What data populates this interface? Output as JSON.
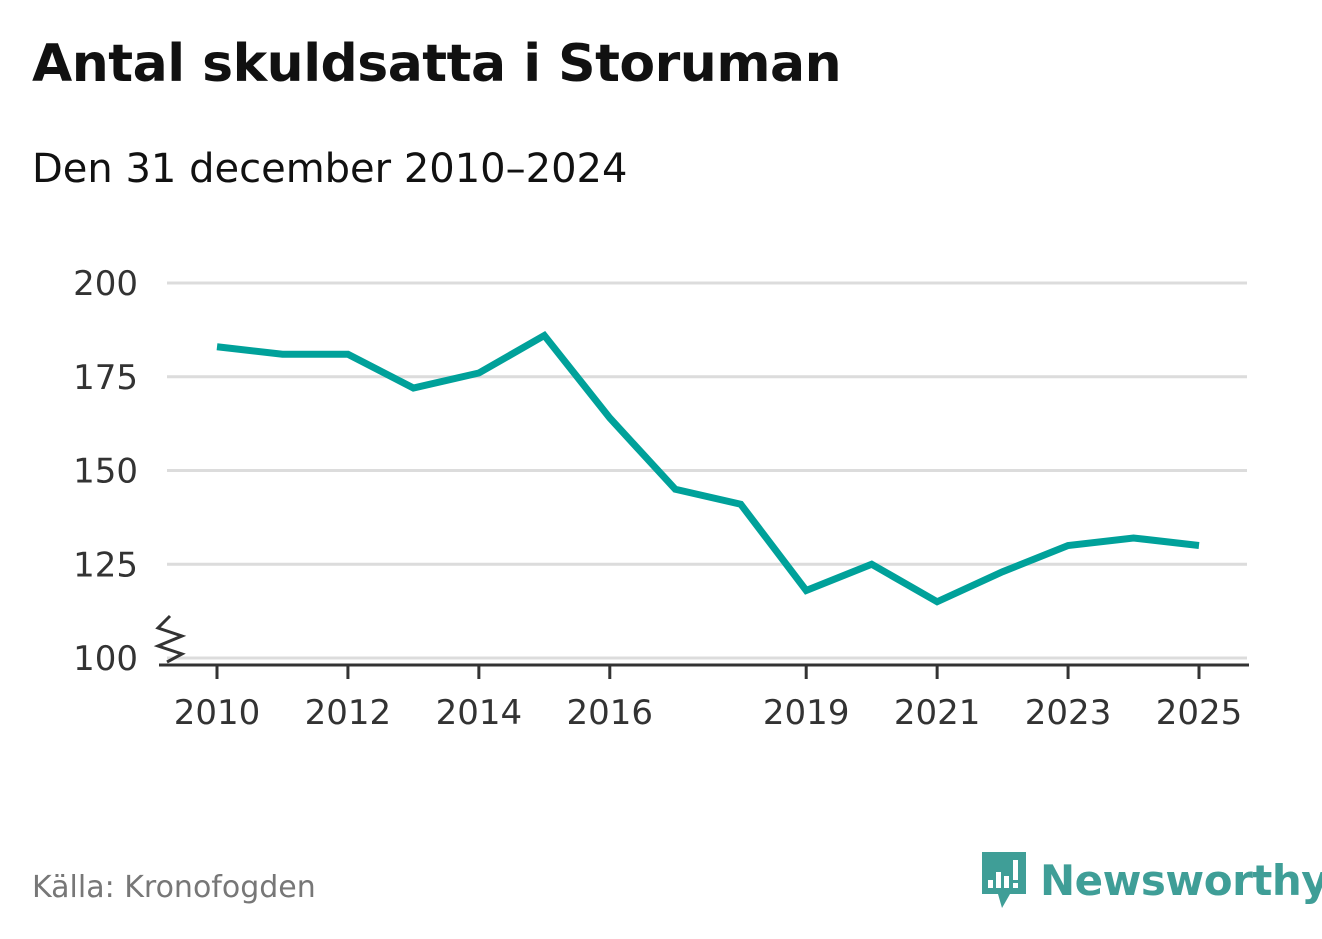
{
  "chart_data": {
    "type": "line",
    "title": "Antal skuldsatta i Storuman",
    "subtitle": "Den 31 december 2010–2024",
    "xlabel": "",
    "ylabel": "",
    "ylim": [
      100,
      200
    ],
    "xlim": [
      2010,
      2025
    ],
    "yticks": [
      100,
      125,
      150,
      175,
      200
    ],
    "yticks_labels": [
      "100",
      "125",
      "150",
      "175",
      "200"
    ],
    "xticks": [
      2010,
      2012,
      2014,
      2016,
      2019,
      2021,
      2023,
      2025
    ],
    "xticks_labels": [
      "2010",
      "2012",
      "2014",
      "2016",
      "2019",
      "2021",
      "2023",
      "2025"
    ],
    "grid": "horizontal",
    "axis_break": true,
    "line_color": "#00a19a",
    "series": [
      {
        "x": [
          2010,
          2011,
          2012,
          2013,
          2014,
          2015,
          2016,
          2017,
          2018,
          2019,
          2020,
          2021,
          2022,
          2023,
          2024,
          2025
        ],
        "values": [
          183,
          181,
          181,
          172,
          176,
          186,
          164,
          145,
          141,
          118,
          125,
          115,
          123,
          130,
          132,
          130
        ]
      }
    ]
  },
  "source": "Källa: Kronofogden",
  "logo": {
    "text": "Newsworthy",
    "icon": "newsworthy-logo-icon",
    "color": "#3f9e97"
  }
}
